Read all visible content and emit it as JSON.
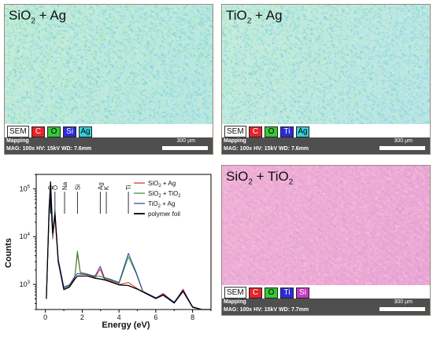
{
  "panels": [
    {
      "title_base": "SiO",
      "title_sub": "2",
      "title_rest": " + Ag",
      "gradient": [
        "#c4ecd8",
        "#b7e6e6"
      ],
      "sem_label": "SEM",
      "elements": [
        {
          "symbol": "C",
          "color": "#e8232b"
        },
        {
          "symbol": "O",
          "color": "#37c837"
        },
        {
          "symbol": "Si",
          "color": "#2b2bd8"
        },
        {
          "symbol": "Ag",
          "color": "#35d1dd"
        }
      ],
      "mode": "Mapping",
      "params": "MAG: 100x   HV: 15kV   WD: 7.6mm",
      "scale": "300 µm"
    },
    {
      "title_base": "TiO",
      "title_sub": "2",
      "title_rest": " + Ag",
      "gradient": [
        "#c6ecdb",
        "#b9e4ea"
      ],
      "sem_label": "SEM",
      "elements": [
        {
          "symbol": "C",
          "color": "#e8232b"
        },
        {
          "symbol": "O",
          "color": "#37c837"
        },
        {
          "symbol": "Ti",
          "color": "#2b2bd8"
        },
        {
          "symbol": "Ag",
          "color": "#35d1dd"
        }
      ],
      "mode": "Mapping",
      "params": "MAG: 100x   HV: 15kV   WD: 7.6mm",
      "scale": "300 µm"
    },
    {
      "title_base": "SiO",
      "title_sub": "2",
      "title_rest": " + TiO",
      "title_sub2": "2",
      "gradient": [
        "#f0b2d6",
        "#e7a6d5"
      ],
      "sem_label": "SEM",
      "elements": [
        {
          "symbol": "C",
          "color": "#e8232b"
        },
        {
          "symbol": "O",
          "color": "#37c837"
        },
        {
          "symbol": "Ti",
          "color": "#2b2bd8"
        },
        {
          "symbol": "Si",
          "color": "#c539c5"
        }
      ],
      "mode": "Mapping",
      "params": "MAG: 100x   HV: 15kV   WD: 7.7mm",
      "scale": "300 µm"
    }
  ],
  "chart_data": {
    "type": "line",
    "xlabel": "Energy (eV)",
    "ylabel": "Counts",
    "x_ticks": [
      0,
      2,
      4,
      6,
      8
    ],
    "xlim": [
      -0.5,
      9
    ],
    "y_scale": "log",
    "y_ticks": [
      {
        "value": 1000,
        "base": "10",
        "exp": "3"
      },
      {
        "value": 10000,
        "base": "10",
        "exp": "4"
      },
      {
        "value": 100000,
        "base": "10",
        "exp": "5"
      }
    ],
    "ylim": [
      300,
      200000
    ],
    "peak_labels": [
      {
        "label": "C",
        "x": 0.28
      },
      {
        "label": "O",
        "x": 0.52
      },
      {
        "label": "Na",
        "x": 1.04
      },
      {
        "label": "Si",
        "x": 1.74
      },
      {
        "label": "Ag",
        "x": 2.98
      },
      {
        "label": "K",
        "x": 3.31
      },
      {
        "label": "Ti",
        "x": 4.51
      }
    ],
    "legend_placement": "top-right",
    "series": [
      {
        "name_base": "SiO",
        "name_sub": "2",
        "name_rest": " + Ag",
        "color": "#d62b2b",
        "x": [
          0.05,
          0.2,
          0.28,
          0.4,
          0.52,
          0.7,
          1.0,
          1.3,
          1.6,
          1.74,
          1.9,
          2.3,
          2.7,
          2.98,
          3.2,
          3.5,
          4.0,
          4.51,
          5.0,
          5.5,
          6.0,
          6.4,
          7.0,
          7.48,
          8.0,
          8.5,
          9.0
        ],
        "y": [
          500,
          30000,
          60000,
          9000,
          25000,
          3000,
          800,
          900,
          1400,
          4500,
          1700,
          1600,
          1400,
          2100,
          1300,
          1200,
          1000,
          1100,
          820,
          650,
          520,
          650,
          420,
          800,
          340,
          280,
          250
        ]
      },
      {
        "name_base": "SiO",
        "name_sub": "2",
        "name_rest": " + TiO",
        "name_sub2": "2",
        "color": "#2f8f2f",
        "x": [
          0.05,
          0.2,
          0.28,
          0.4,
          0.52,
          0.7,
          1.0,
          1.3,
          1.6,
          1.74,
          1.9,
          2.3,
          2.7,
          2.98,
          3.2,
          3.5,
          4.0,
          4.51,
          4.93,
          5.3,
          6.0,
          6.4,
          7.0,
          7.48,
          8.0,
          8.5,
          9.0
        ],
        "y": [
          500,
          28000,
          55000,
          10000,
          30000,
          3200,
          850,
          950,
          1500,
          5000,
          1800,
          1650,
          1450,
          1500,
          1350,
          1250,
          1050,
          3800,
          1700,
          700,
          520,
          600,
          420,
          750,
          340,
          280,
          250
        ]
      },
      {
        "name_base": "TiO",
        "name_sub": "2",
        "name_rest": " + Ag",
        "color": "#2c3fa8",
        "x": [
          0.05,
          0.2,
          0.28,
          0.4,
          0.52,
          0.7,
          1.0,
          1.3,
          1.6,
          1.74,
          1.9,
          2.3,
          2.7,
          2.98,
          3.2,
          3.5,
          4.0,
          4.51,
          4.93,
          5.3,
          6.0,
          6.4,
          7.0,
          7.48,
          8.0,
          8.5,
          9.0
        ],
        "y": [
          500,
          32000,
          65000,
          11000,
          35000,
          3400,
          880,
          980,
          1450,
          1700,
          1650,
          1600,
          1500,
          2400,
          1400,
          1300,
          1100,
          4500,
          1800,
          720,
          530,
          620,
          430,
          760,
          345,
          285,
          255
        ]
      },
      {
        "name_base": "polymer foil",
        "name_sub": "",
        "name_rest": "",
        "color": "#000000",
        "x": [
          0.05,
          0.2,
          0.28,
          0.4,
          0.52,
          0.7,
          1.0,
          1.3,
          1.6,
          1.74,
          1.9,
          2.3,
          2.7,
          2.98,
          3.2,
          3.5,
          4.0,
          4.51,
          5.0,
          5.5,
          6.0,
          6.4,
          7.0,
          7.48,
          8.0,
          8.5,
          9.0
        ],
        "y": [
          500,
          40000,
          140000,
          12000,
          30000,
          3000,
          780,
          880,
          1300,
          1500,
          1500,
          1500,
          1350,
          1300,
          1250,
          1150,
          980,
          950,
          800,
          640,
          510,
          600,
          410,
          720,
          335,
          278,
          248
        ]
      }
    ]
  }
}
